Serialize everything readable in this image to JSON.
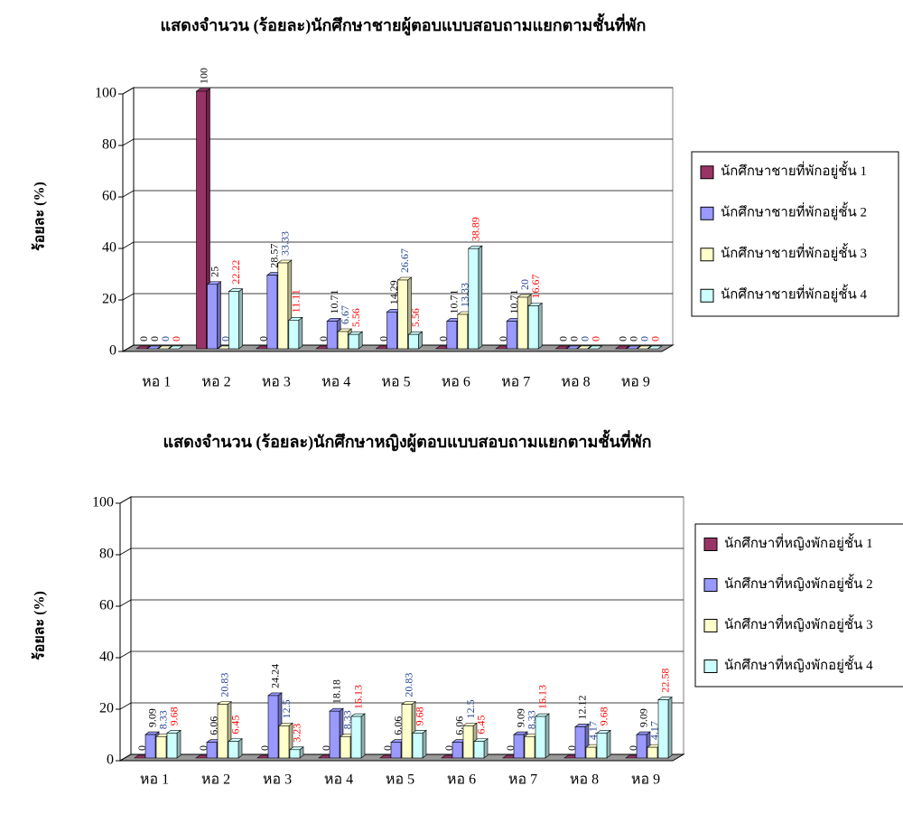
{
  "chart_data": [
    {
      "type": "bar3d",
      "title": "แสดงจำนวน (ร้อยละ)นักศึกษาชายผู้ตอบแบบสอบถามแยกตามชั้นที่พัก",
      "y_label": "ร้อยละ (%)",
      "categories": [
        "หอ 1",
        "หอ 2",
        "หอ 3",
        "หอ 4",
        "หอ 5",
        "หอ 6",
        "หอ 7",
        "หอ 8",
        "หอ 9"
      ],
      "series": [
        {
          "name": "นักศึกษาชายที่พักอยู่ชั้น 1",
          "color": "#993366",
          "label_color": "#000000",
          "values": [
            0,
            100,
            0,
            0,
            0,
            0,
            0,
            0,
            0
          ]
        },
        {
          "name": "นักศึกษาชายที่พักอยู่ชั้น 2",
          "color": "#9999ff",
          "label_color": "#000000",
          "values": [
            0,
            25,
            28.57,
            10.71,
            14.29,
            10.71,
            10.71,
            0,
            0
          ]
        },
        {
          "name": "นักศึกษาชายที่พักอยู่ชั้น 3",
          "color": "#ffffcc",
          "label_color": "#1f3f8f",
          "values": [
            0,
            0,
            33.33,
            6.67,
            26.67,
            13.33,
            20,
            0,
            0
          ]
        },
        {
          "name": "นักศึกษาชายที่พักอยู่ชั้น 4",
          "color": "#ccffff",
          "label_color": "#ff0000",
          "values": [
            0,
            22.22,
            11.11,
            5.56,
            5.56,
            38.89,
            16.67,
            0,
            0
          ]
        }
      ],
      "ylim": [
        0,
        100
      ],
      "yticks": [
        0,
        20,
        40,
        60,
        80,
        100
      ],
      "grid": true,
      "legend": "right"
    },
    {
      "type": "bar3d",
      "title": "แสดงจำนวน (ร้อยละ)นักศึกษาหญิงผู้ตอบแบบสอบถามแยกตามชั้นที่พัก",
      "y_label": "ร้อยละ (%)",
      "categories": [
        "หอ 1",
        "หอ 2",
        "หอ 3",
        "หอ 4",
        "หอ 5",
        "หอ 6",
        "หอ 7",
        "หอ 8",
        "หอ 9"
      ],
      "series": [
        {
          "name": "นักศึกษาที่หญิงพักอยู่ชั้น 1",
          "color": "#993366",
          "label_color": "#000000",
          "values": [
            0,
            0,
            0,
            0,
            0,
            0,
            0,
            0,
            0
          ]
        },
        {
          "name": "นักศึกษาที่หญิงพักอยู่ชั้น 2",
          "color": "#9999ff",
          "label_color": "#000000",
          "values": [
            9.09,
            6.06,
            24.24,
            18.18,
            6.06,
            6.06,
            9.09,
            12.12,
            9.09
          ]
        },
        {
          "name": "นักศึกษาที่หญิงพักอยู่ชั้น 3",
          "color": "#ffffcc",
          "label_color": "#1f3f8f",
          "values": [
            8.33,
            20.83,
            12.5,
            8.33,
            20.83,
            12.5,
            8.33,
            4.17,
            4.17
          ]
        },
        {
          "name": "นักศึกษาที่หญิงพักอยู่ชั้น 4",
          "color": "#ccffff",
          "label_color": "#ff0000",
          "values": [
            9.68,
            6.45,
            3.23,
            16.13,
            9.68,
            6.45,
            16.13,
            9.68,
            22.58
          ]
        }
      ],
      "ylim": [
        0,
        100
      ],
      "yticks": [
        0,
        20,
        40,
        60,
        80,
        100
      ],
      "grid": true,
      "legend": "right"
    }
  ]
}
